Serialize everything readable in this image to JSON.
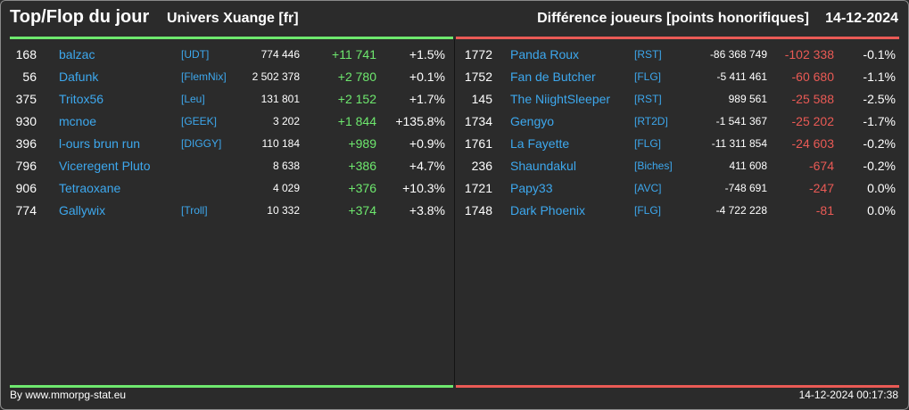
{
  "header": {
    "title": "Top/Flop du jour",
    "universe": "Univers Xuange [fr]",
    "metric": "Différence joueurs [points honorifiques]",
    "date": "14-12-2024"
  },
  "colors": {
    "positive": "#6ee86e",
    "negative": "#ea5a55",
    "link": "#3da8ee",
    "background": "#2b2b2b"
  },
  "top": [
    {
      "rank": "168",
      "name": "balzac",
      "alliance": "[UDT]",
      "points": "774 446",
      "diff": "+11 741",
      "pct": "+1.5%"
    },
    {
      "rank": "56",
      "name": "Dafunk",
      "alliance": "[FlemNix]",
      "points": "2 502 378",
      "diff": "+2 780",
      "pct": "+0.1%"
    },
    {
      "rank": "375",
      "name": "Tritox56",
      "alliance": "[Leu]",
      "points": "131 801",
      "diff": "+2 152",
      "pct": "+1.7%"
    },
    {
      "rank": "930",
      "name": "mcnoe",
      "alliance": "[GEEK]",
      "points": "3 202",
      "diff": "+1 844",
      "pct": "+135.8%"
    },
    {
      "rank": "396",
      "name": "l-ours brun run",
      "alliance": "[DIGGY]",
      "points": "110 184",
      "diff": "+989",
      "pct": "+0.9%"
    },
    {
      "rank": "796",
      "name": "Viceregent Pluto",
      "alliance": "",
      "points": "8 638",
      "diff": "+386",
      "pct": "+4.7%"
    },
    {
      "rank": "906",
      "name": "Tetraoxane",
      "alliance": "",
      "points": "4 029",
      "diff": "+376",
      "pct": "+10.3%"
    },
    {
      "rank": "774",
      "name": "Gallywix",
      "alliance": "[Troll]",
      "points": "10 332",
      "diff": "+374",
      "pct": "+3.8%"
    }
  ],
  "flop": [
    {
      "rank": "1772",
      "name": "Panda Roux",
      "alliance": "[RST]",
      "points": "-86 368 749",
      "diff": "-102 338",
      "pct": "-0.1%"
    },
    {
      "rank": "1752",
      "name": "Fan de Butcher",
      "alliance": "[FLG]",
      "points": "-5 411 461",
      "diff": "-60 680",
      "pct": "-1.1%"
    },
    {
      "rank": "145",
      "name": "The NiightSleeper",
      "alliance": "[RST]",
      "points": "989 561",
      "diff": "-25 588",
      "pct": "-2.5%"
    },
    {
      "rank": "1734",
      "name": "Gengyo",
      "alliance": "[RT2D]",
      "points": "-1 541 367",
      "diff": "-25 202",
      "pct": "-1.7%"
    },
    {
      "rank": "1761",
      "name": "La Fayette",
      "alliance": "[FLG]",
      "points": "-11 311 854",
      "diff": "-24 603",
      "pct": "-0.2%"
    },
    {
      "rank": "236",
      "name": "Shaundakul",
      "alliance": "[Biches]",
      "points": "411 608",
      "diff": "-674",
      "pct": "-0.2%"
    },
    {
      "rank": "1721",
      "name": "Papy33",
      "alliance": "[AVC]",
      "points": "-748 691",
      "diff": "-247",
      "pct": "0.0%"
    },
    {
      "rank": "1748",
      "name": "Dark Phoenix",
      "alliance": "[FLG]",
      "points": "-4 722 228",
      "diff": "-81",
      "pct": "0.0%"
    }
  ],
  "footer": {
    "credit": "By www.mmorpg-stat.eu",
    "timestamp": "14-12-2024 00:17:38"
  }
}
